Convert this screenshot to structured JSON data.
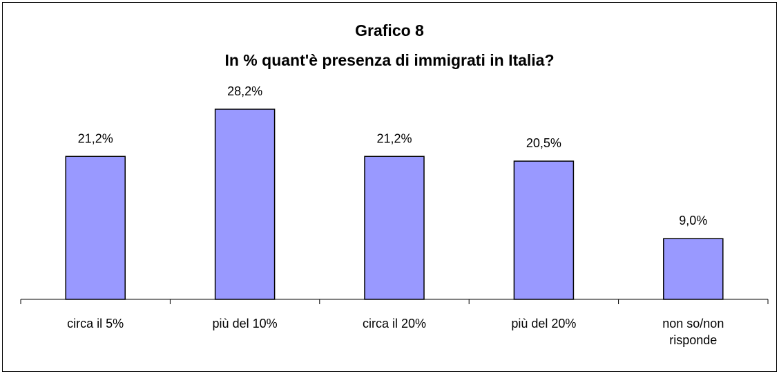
{
  "chart_data": {
    "type": "bar",
    "title": [
      "Grafico 8",
      "In % quant'è presenza di immigrati in Italia?"
    ],
    "categories": [
      "circa il 5%",
      "più del 10%",
      "circa il 20%",
      "più del 20%",
      "non so/non risponde"
    ],
    "values": [
      21.2,
      28.2,
      21.2,
      20.5,
      9.0
    ],
    "value_labels": [
      "21,2%",
      "28,2%",
      "21,2%",
      "20,5%",
      "9,0%"
    ],
    "color": "#9999ff"
  }
}
